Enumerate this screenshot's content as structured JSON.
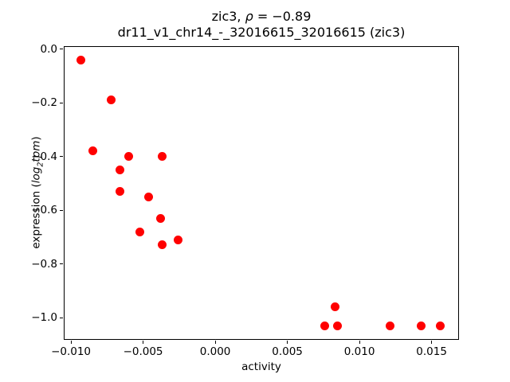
{
  "figure": {
    "title_line1": {
      "gene": "zic3, ",
      "rho": "ρ",
      "rest": " = −0.89"
    },
    "title_line2": "dr11_v1_chr14_-_32016615_32016615 (zic3)",
    "xlabel": "activity",
    "ylabel": {
      "prefix": "expression (",
      "log": "log",
      "sub": "2",
      "tpm": "tpm",
      "suffix": ")"
    }
  },
  "chart_data": {
    "type": "scatter",
    "title": "zic3, ρ = −0.89",
    "subtitle": "dr11_v1_chr14_-_32016615_32016615 (zic3)",
    "xlabel": "activity",
    "ylabel": "expression (log2 tpm)",
    "xlim": [
      -0.0105,
      0.0169
    ],
    "ylim": [
      -1.083,
      0.011
    ],
    "xtick_values": [
      -0.01,
      -0.005,
      0.0,
      0.005,
      0.01,
      0.015
    ],
    "xtick_labels": [
      "−0.010",
      "−0.005",
      "0.000",
      "0.005",
      "0.010",
      "0.015"
    ],
    "ytick_values": [
      0.0,
      -0.2,
      -0.4,
      -0.6,
      -0.8,
      -1.0
    ],
    "ytick_labels": [
      "0.0",
      "−0.2",
      "−0.4",
      "−0.6",
      "−0.8",
      "−1.0"
    ],
    "grid": false,
    "legend": null,
    "marker_color": "#ff0000",
    "points": [
      [
        -0.0093,
        -0.04
      ],
      [
        -0.0072,
        -0.19
      ],
      [
        -0.0085,
        -0.38
      ],
      [
        -0.006,
        -0.4
      ],
      [
        -0.0037,
        -0.4
      ],
      [
        -0.0066,
        -0.45
      ],
      [
        -0.0066,
        -0.53
      ],
      [
        -0.0046,
        -0.55
      ],
      [
        -0.0038,
        -0.63
      ],
      [
        -0.0052,
        -0.68
      ],
      [
        -0.0037,
        -0.73
      ],
      [
        -0.0026,
        -0.71
      ],
      [
        0.0083,
        -0.96
      ],
      [
        0.0076,
        -1.03
      ],
      [
        0.0085,
        -1.03
      ],
      [
        0.0121,
        -1.03
      ],
      [
        0.0143,
        -1.03
      ],
      [
        0.0156,
        -1.03
      ]
    ]
  }
}
